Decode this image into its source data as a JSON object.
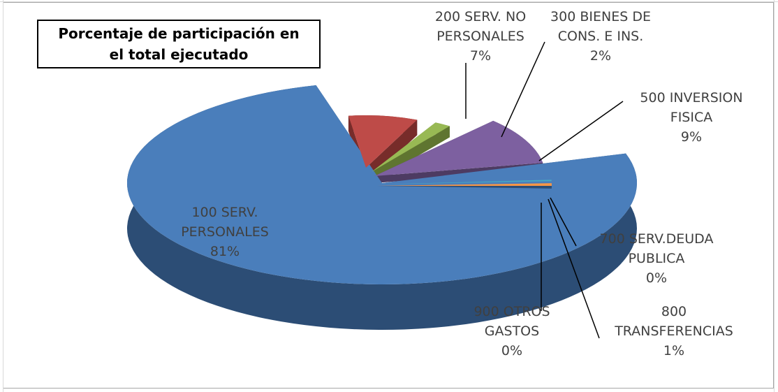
{
  "chart_data": {
    "type": "pie",
    "title": "Porcentaje de participación en\nel total ejecutado",
    "slices": [
      {
        "key": "s100",
        "label": [
          "100 SERV.",
          "PERSONALES"
        ],
        "pct_label": "81%",
        "value": 81,
        "color": "#4a7ebb",
        "side_color": "#2c4d75"
      },
      {
        "key": "s200",
        "label": [
          "200 SERV. NO",
          "PERSONALES"
        ],
        "pct_label": "7%",
        "value": 7,
        "color": "#be4b48",
        "side_color": "#772c2a"
      },
      {
        "key": "s300",
        "label": [
          "300 BIENES DE",
          "CONS. E INS."
        ],
        "pct_label": "2%",
        "value": 2,
        "color": "#98b954",
        "side_color": "#5f7530"
      },
      {
        "key": "s500",
        "label": [
          "500 INVERSION",
          "FISICA"
        ],
        "pct_label": "9%",
        "value": 9,
        "color": "#7d60a0",
        "side_color": "#4d3b62"
      },
      {
        "key": "s700",
        "label": [
          "700 SERV.DEUDA",
          "PUBLICA"
        ],
        "pct_label": "0%",
        "value": 0.3,
        "color": "#46aac5",
        "side_color": "#276a7c"
      },
      {
        "key": "s800",
        "label": [
          "800",
          "TRANSFERENCIAS"
        ],
        "pct_label": "1%",
        "value": 0.5,
        "color": "#f79646",
        "side_color": "#b66d31"
      },
      {
        "key": "s900",
        "label": [
          "900 OTROS",
          "GASTOS"
        ],
        "pct_label": "0%",
        "value": 0.2,
        "color": "#2c4d75",
        "side_color": "#1c3150"
      }
    ],
    "legend": "none",
    "grid": false
  }
}
